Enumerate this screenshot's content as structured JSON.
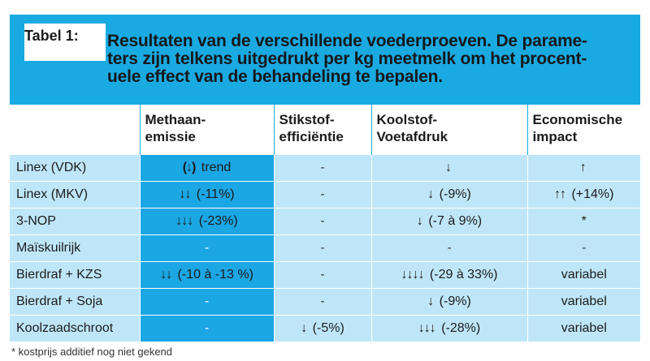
{
  "tab_label": "Tabel 1:",
  "title": "Resultaten van de verschillende voederproeven. De parame-ters zijn telkens uitgedrukt per kg meetmelk om het procent-uele effect van de behandeling te bepalen.",
  "title_lines": [
    "Resultaten van de verschillende voederproeven. De parame-",
    "ters zijn telkens uitgedrukt per kg meetmelk om het procent-",
    "uele effect van de behandeling te bepalen."
  ],
  "headers": [
    "",
    [
      "Methaan-",
      "emissie"
    ],
    [
      "Stikstof-",
      "efficiëntie"
    ],
    [
      "Koolstof-",
      "Voetafdruk"
    ],
    [
      "Economische",
      "impact"
    ]
  ],
  "rows": [
    {
      "label": "Linex (VDK)",
      "cells": [
        {
          "arrows": "(↓)",
          "text": " trend",
          "hl": true
        },
        {
          "text": "-",
          "hl": false
        },
        {
          "arrows": "↓",
          "text": "",
          "hl": false
        },
        {
          "arrows": "↑",
          "text": "",
          "hl": false
        }
      ]
    },
    {
      "label": "Linex (MKV)",
      "cells": [
        {
          "arrows": "↓↓",
          "text": " (-11%)",
          "hl": true
        },
        {
          "text": "-",
          "hl": false
        },
        {
          "arrows": "↓",
          "text": " (-9%)",
          "hl": false
        },
        {
          "arrows": "↑↑",
          "text": " (+14%)",
          "hl": false
        }
      ]
    },
    {
      "label": "3-NOP",
      "cells": [
        {
          "arrows": "↓↓↓",
          "text": " (-23%)",
          "hl": true
        },
        {
          "text": "-",
          "hl": false
        },
        {
          "arrows": "↓",
          "text": " (-7 à 9%)",
          "hl": false
        },
        {
          "text": "*",
          "hl": false
        }
      ]
    },
    {
      "label": "Maïskuilrijk",
      "cells": [
        {
          "text": "-",
          "hl": true
        },
        {
          "text": "-",
          "hl": false
        },
        {
          "text": "-",
          "hl": false
        },
        {
          "text": "-",
          "hl": false
        }
      ]
    },
    {
      "label": "Bierdraf + KZS",
      "cells": [
        {
          "arrows": "↓↓",
          "text": " (-10 à -13 %)",
          "hl": true
        },
        {
          "text": "-",
          "hl": false
        },
        {
          "arrows": "↓↓↓↓",
          "text": " (-29 à 33%)",
          "hl": false
        },
        {
          "text": "variabel",
          "hl": false
        }
      ]
    },
    {
      "label": "Bierdraf + Soja",
      "cells": [
        {
          "text": "-",
          "hl": true
        },
        {
          "text": "-",
          "hl": false
        },
        {
          "arrows": "↓",
          "text": " (-9%)",
          "hl": false
        },
        {
          "text": "variabel",
          "hl": false
        }
      ]
    },
    {
      "label": "Koolzaadschroot",
      "cells": [
        {
          "text": "-",
          "hl": true
        },
        {
          "arrows": "↓",
          "text": " (-5%)",
          "hl": false
        },
        {
          "arrows": "↓↓↓",
          "text": " (-28%)",
          "hl": false
        },
        {
          "text": "variabel",
          "hl": false
        }
      ]
    }
  ],
  "footnote": "* kostprijs additief nog niet gekend",
  "colors": {
    "accent": "#1aaae2",
    "row_bg": "#bfe6f8",
    "highlight": "#1ba6e4"
  }
}
